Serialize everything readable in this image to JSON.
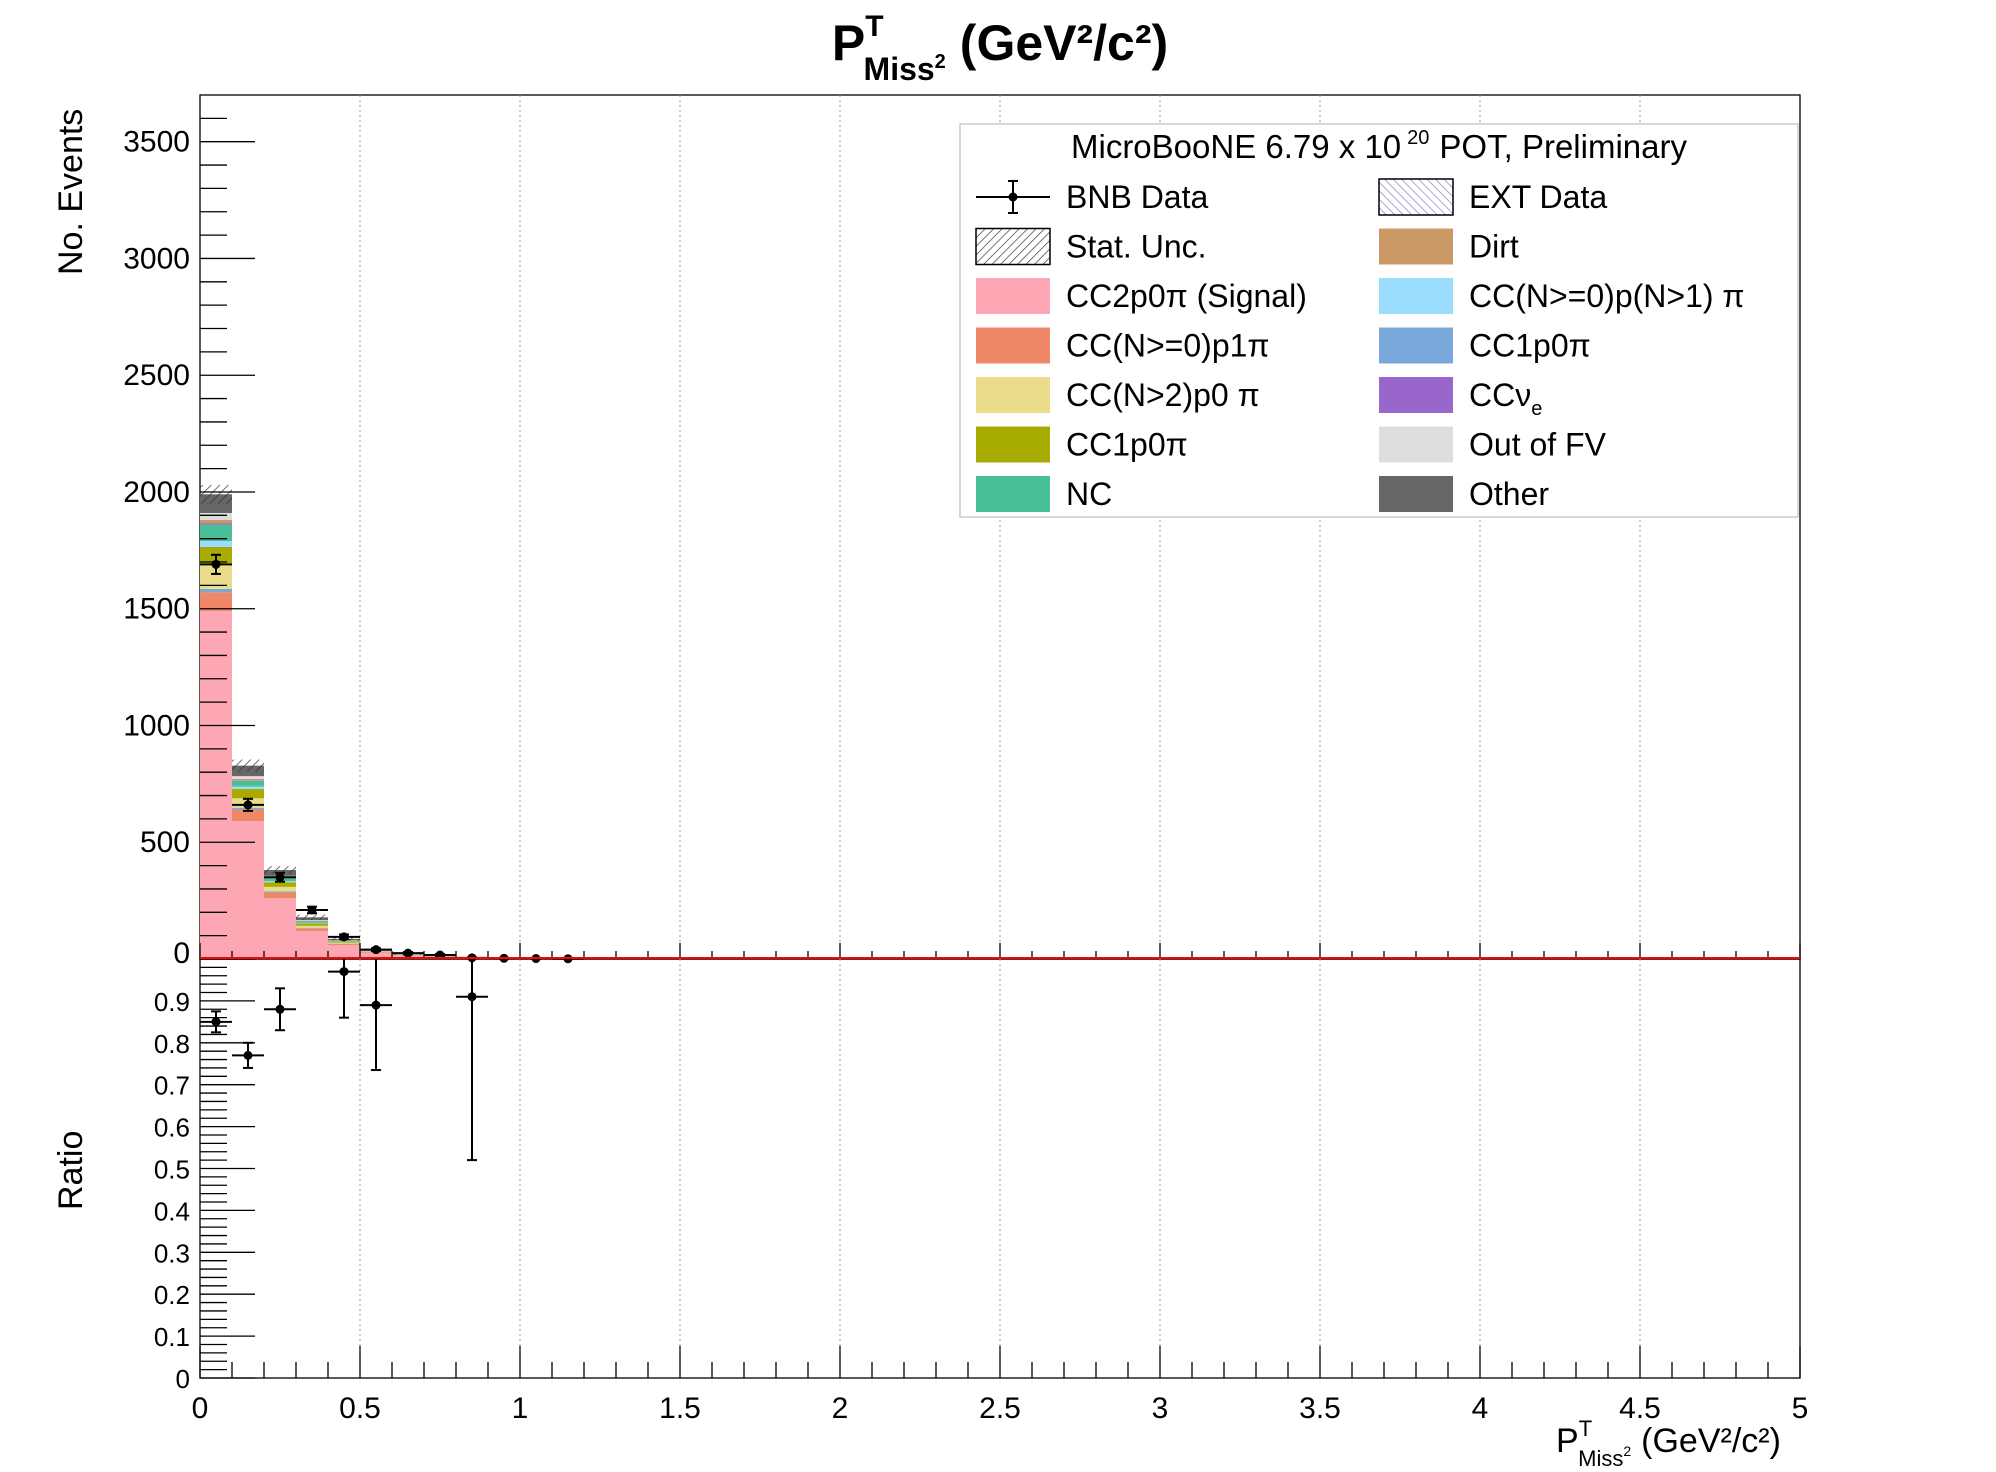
{
  "chart_data": {
    "type": "bar",
    "title": {
      "base": "P",
      "sup": "T",
      "sub": "Miss",
      "sub_sup": "2",
      "unit": "(GeV²/c²)"
    },
    "xlabel": {
      "base": "P",
      "sup": "T",
      "sub": "Miss",
      "sub_sup": "2",
      "unit": "(GeV²/c²)"
    },
    "ylabel": "No. Events",
    "ratio_ylabel": "Ratio",
    "xlim": [
      0,
      5
    ],
    "ylim": [
      0,
      3700
    ],
    "ratio_ylim": [
      0,
      1
    ],
    "x_ticks": [
      "0",
      "0.5",
      "1",
      "1.5",
      "2",
      "2.5",
      "3",
      "3.5",
      "4",
      "4.5",
      "5"
    ],
    "y_ticks": [
      "0",
      "500",
      "1000",
      "1500",
      "2000",
      "2500",
      "3000",
      "3500"
    ],
    "ratio_ticks": [
      "0",
      "0.1",
      "0.2",
      "0.3",
      "0.4",
      "0.5",
      "0.6",
      "0.7",
      "0.8",
      "0.9"
    ],
    "grid": "vertical-dotted",
    "bin_width": 0.1,
    "bins_x": [
      0.05,
      0.15,
      0.25,
      0.35,
      0.45,
      0.55,
      0.65,
      0.75,
      0.85,
      0.95,
      1.05,
      1.15
    ],
    "series": [
      {
        "name": "CC2p0π (Signal)",
        "color": "#fda7b5",
        "values": [
          1490,
          590,
          260,
          120,
          60,
          28,
          14,
          9,
          4,
          2,
          1,
          0.5
        ]
      },
      {
        "name": "CC(N>=0)p1π",
        "color": "#ef8866",
        "values": [
          80,
          50,
          25,
          12,
          5,
          3,
          2,
          1,
          0.5,
          0.3,
          0.2,
          0.1
        ]
      },
      {
        "name": "CC1p0π",
        "color": "#79a9db",
        "values": [
          15,
          8,
          4,
          2,
          1,
          0.5,
          0.3,
          0.2,
          0.1,
          0.1,
          0,
          0
        ]
      },
      {
        "name": "CC(N>2)p0π",
        "color": "#ebdc8b",
        "values": [
          110,
          40,
          20,
          8,
          4,
          2,
          1,
          1,
          0.5,
          0.2,
          0.1,
          0.1
        ]
      },
      {
        "name": "CC1p0π",
        "color": "#a8ac00",
        "values": [
          70,
          40,
          20,
          10,
          5,
          2,
          1,
          1,
          0.5,
          0.2,
          0.1,
          0.1
        ]
      },
      {
        "name": "CC(N>=0)p(N>1)π",
        "color": "#99ddff",
        "values": [
          25,
          10,
          5,
          3,
          1,
          0.5,
          0.3,
          0.2,
          0.1,
          0.1,
          0,
          0
        ]
      },
      {
        "name": "NC",
        "color": "#48bf98",
        "values": [
          70,
          25,
          12,
          6,
          3,
          1,
          0.5,
          0.3,
          0.2,
          0.1,
          0,
          0
        ]
      },
      {
        "name": "CCνe",
        "color": "#9966cc",
        "values": [
          5,
          2,
          1,
          0.5,
          0.2,
          0.1,
          0,
          0,
          0,
          0,
          0,
          0
        ]
      },
      {
        "name": "Dirt",
        "color": "#cb9965",
        "values": [
          15,
          6,
          3,
          2,
          1,
          0.5,
          0.2,
          0.1,
          0.1,
          0,
          0,
          0
        ]
      },
      {
        "name": "Out of FV",
        "color": "#dddddd",
        "values": [
          30,
          12,
          6,
          3,
          1,
          0.5,
          0.3,
          0.2,
          0.1,
          0,
          0,
          0
        ]
      },
      {
        "name": "Other",
        "color": "#666666",
        "values": [
          80,
          45,
          25,
          12,
          5,
          2,
          1,
          1,
          0.5,
          0.2,
          0.1,
          0.1
        ]
      }
    ],
    "stat_unc": [
      40,
      26,
      17,
      12,
      8,
      5,
      4,
      3,
      2,
      1.5,
      1,
      1
    ],
    "bnb_data": {
      "name": "BNB Data",
      "values": [
        1690,
        660,
        350,
        210,
        95,
        40,
        25,
        17,
        5,
        3,
        2,
        1
      ],
      "errors": [
        41,
        26,
        19,
        14,
        10,
        6,
        5,
        4,
        2,
        2,
        1.5,
        1
      ]
    },
    "ratio": {
      "x": [
        0.05,
        0.15,
        0.25,
        0.45,
        0.55,
        0.85
      ],
      "values": [
        0.85,
        0.77,
        0.88,
        0.97,
        0.89,
        0.91
      ],
      "errors": [
        0.025,
        0.03,
        0.05,
        0.11,
        0.155,
        0.39
      ]
    },
    "legend": {
      "header": "MicroBooNE 6.79 x 10",
      "header_exp": "20",
      "header_tail": "POT, Preliminary",
      "placement": "top-right",
      "items": [
        {
          "label": "BNB Data",
          "style": "marker"
        },
        {
          "label": "EXT Data",
          "style": "hatch-purple",
          "color": "#8a6fbf"
        },
        {
          "label": "Stat. Unc.",
          "style": "hatch-black"
        },
        {
          "label": "Dirt",
          "style": "fill",
          "color": "#cb9965"
        },
        {
          "label": "CC2p0π (Signal)",
          "style": "fill",
          "color": "#fda7b5"
        },
        {
          "label": "CC(N>=0)p(N>1) π",
          "style": "fill",
          "color": "#99ddff"
        },
        {
          "label": "CC(N>=0)p1π",
          "style": "fill",
          "color": "#ef8866"
        },
        {
          "label": "CC1p0π",
          "style": "fill",
          "color": "#79a9db"
        },
        {
          "label": "CC(N>2)p0 π",
          "style": "fill",
          "color": "#ebdc8b"
        },
        {
          "label": "CCν",
          "label_sub": "e",
          "style": "fill",
          "color": "#9966cc"
        },
        {
          "label": "CC1p0π",
          "style": "fill",
          "color": "#a8ac00"
        },
        {
          "label": "Out of FV",
          "style": "fill",
          "color": "#dddddd"
        },
        {
          "label": "NC",
          "style": "fill",
          "color": "#48bf98"
        },
        {
          "label": "Other",
          "style": "fill",
          "color": "#666666"
        }
      ]
    }
  }
}
